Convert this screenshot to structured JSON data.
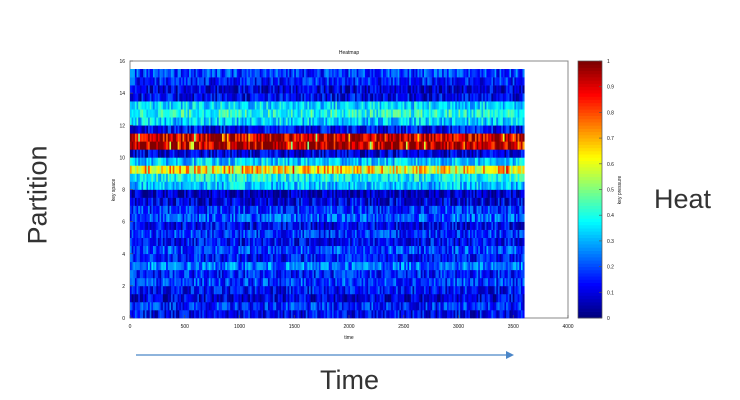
{
  "slide": {
    "partition_label": "Partition",
    "heat_label": "Heat",
    "time_label": "Time"
  },
  "colors": {
    "arrow": "#4a86c8",
    "slide_text": "#333333"
  },
  "chart_data": {
    "type": "heatmap",
    "title": "Heatmap",
    "xlabel": "time",
    "ylabel": "key space",
    "xlim": [
      0,
      4000
    ],
    "ylim": [
      0,
      16
    ],
    "x_ticks": [
      0,
      500,
      1000,
      1500,
      2000,
      2500,
      3000,
      3500,
      4000
    ],
    "y_ticks": [
      0,
      2,
      4,
      6,
      8,
      10,
      12,
      14,
      16
    ],
    "data_x_range": [
      0,
      3600
    ],
    "colorbar": {
      "label": "key pressure",
      "range": [
        0,
        1
      ],
      "ticks": [
        0,
        0.1,
        0.2,
        0.3,
        0.4,
        0.5,
        0.6,
        0.7,
        0.8,
        0.9,
        1
      ],
      "tick_labels": [
        "0",
        "0.1",
        "0.2",
        "0.3",
        "0.4",
        "0.5",
        "0.6",
        "0.7",
        "0.8",
        "0.9",
        "1"
      ]
    },
    "rows": [
      {
        "y0": 0.0,
        "y1": 0.5,
        "mean": 0.12
      },
      {
        "y0": 0.5,
        "y1": 1.0,
        "mean": 0.16
      },
      {
        "y0": 1.0,
        "y1": 1.5,
        "mean": 0.1
      },
      {
        "y0": 1.5,
        "y1": 2.0,
        "mean": 0.13
      },
      {
        "y0": 2.0,
        "y1": 2.5,
        "mean": 0.18
      },
      {
        "y0": 2.5,
        "y1": 3.0,
        "mean": 0.15
      },
      {
        "y0": 3.0,
        "y1": 3.5,
        "mean": 0.24
      },
      {
        "y0": 3.5,
        "y1": 4.0,
        "mean": 0.14
      },
      {
        "y0": 4.0,
        "y1": 4.5,
        "mean": 0.19
      },
      {
        "y0": 4.5,
        "y1": 5.0,
        "mean": 0.12
      },
      {
        "y0": 5.0,
        "y1": 5.5,
        "mean": 0.17
      },
      {
        "y0": 5.5,
        "y1": 6.0,
        "mean": 0.11
      },
      {
        "y0": 6.0,
        "y1": 6.5,
        "mean": 0.21
      },
      {
        "y0": 6.5,
        "y1": 7.0,
        "mean": 0.17
      },
      {
        "y0": 7.0,
        "y1": 7.5,
        "mean": 0.1
      },
      {
        "y0": 7.5,
        "y1": 8.0,
        "mean": 0.06
      },
      {
        "y0": 8.0,
        "y1": 8.5,
        "mean": 0.32
      },
      {
        "y0": 8.5,
        "y1": 9.0,
        "mean": 0.38
      },
      {
        "y0": 9.0,
        "y1": 9.5,
        "mean": 0.65
      },
      {
        "y0": 9.5,
        "y1": 10.0,
        "mean": 0.32
      },
      {
        "y0": 10.0,
        "y1": 10.5,
        "mean": 0.09
      },
      {
        "y0": 10.5,
        "y1": 11.0,
        "mean": 0.97
      },
      {
        "y0": 11.0,
        "y1": 11.5,
        "mean": 0.95
      },
      {
        "y0": 11.5,
        "y1": 12.0,
        "mean": 0.12
      },
      {
        "y0": 12.0,
        "y1": 12.5,
        "mean": 0.33
      },
      {
        "y0": 12.5,
        "y1": 13.0,
        "mean": 0.4
      },
      {
        "y0": 13.0,
        "y1": 13.5,
        "mean": 0.34
      },
      {
        "y0": 13.5,
        "y1": 14.0,
        "mean": 0.11
      },
      {
        "y0": 14.0,
        "y1": 14.5,
        "mean": 0.09
      },
      {
        "y0": 14.5,
        "y1": 15.0,
        "mean": 0.15
      },
      {
        "y0": 15.0,
        "y1": 15.5,
        "mean": 0.18
      }
    ]
  }
}
